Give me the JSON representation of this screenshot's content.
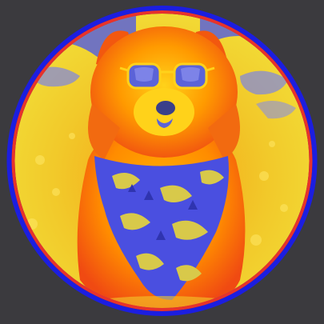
{
  "colors": {
    "background": "#3b3a3e",
    "outer_ring": "#1c1ee0",
    "inner_ring": "#e8322b",
    "fur_orange": "#ff8c00",
    "fur_red": "#f04a12",
    "fur_yellow": "#ffd21a",
    "field_yellow": "#f2e23a",
    "field_orange": "#f5a113",
    "sky_blue": "#5b63d8",
    "bandana_blue": "#4a4fe0",
    "bandana_pattern": "#d8c94a",
    "nose": "#3a3f8a"
  },
  "subject": {
    "animal": "dog",
    "accessories": [
      "sunglasses-icon",
      "bandana-icon"
    ]
  }
}
